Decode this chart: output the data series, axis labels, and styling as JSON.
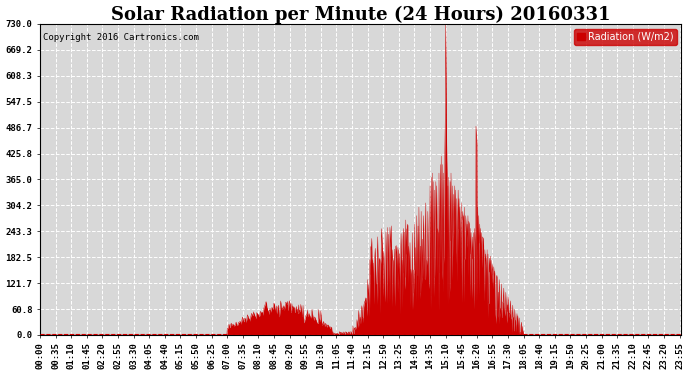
{
  "title": "Solar Radiation per Minute (24 Hours) 20160331",
  "copyright_text": "Copyright 2016 Cartronics.com",
  "legend_label": "Radiation (W/m2)",
  "ylim": [
    0.0,
    730.0
  ],
  "yticks": [
    0.0,
    60.8,
    121.7,
    182.5,
    243.3,
    304.2,
    365.0,
    425.8,
    486.7,
    547.5,
    608.3,
    669.2,
    730.0
  ],
  "bg_color": "#ffffff",
  "plot_bg_color": "#d8d8d8",
  "grid_color": "#ffffff",
  "line_color": "#cc0000",
  "fill_color": "#cc0000",
  "dashed_line_color": "#cc0000",
  "title_fontsize": 13,
  "tick_fontsize": 6.5,
  "total_minutes": 1440,
  "tick_step": 35
}
